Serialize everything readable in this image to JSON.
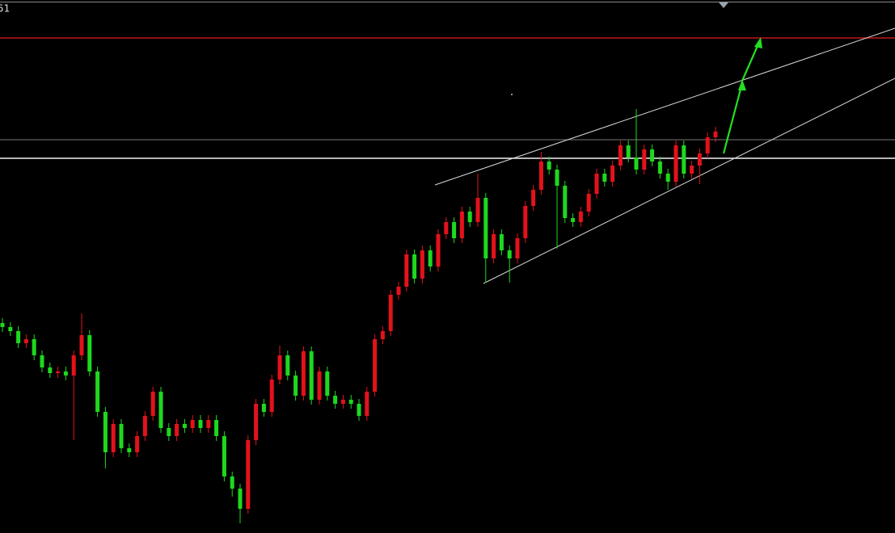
{
  "chart_data": {
    "type": "candlestick",
    "corner_label": "51",
    "ylim": [
      0,
      660
    ],
    "up_color": "#e3121b",
    "down_color": "#1ed81e",
    "open": [
      260,
      255,
      250,
      235,
      240,
      220,
      205,
      198,
      200,
      195,
      220,
      245,
      200,
      150,
      100,
      135,
      105,
      100,
      120,
      145,
      175,
      130,
      120,
      135,
      130,
      140,
      130,
      140,
      120,
      70,
      55,
      30,
      115,
      160,
      150,
      190,
      220,
      195,
      170,
      225,
      165,
      200,
      170,
      160,
      165,
      160,
      145,
      175,
      240,
      250,
      295,
      305,
      345,
      315,
      350,
      330,
      370,
      385,
      365,
      398,
      385,
      415,
      340,
      370,
      350,
      340,
      365,
      405,
      425,
      460,
      450,
      430,
      390,
      385,
      398,
      420,
      445,
      435,
      455,
      480,
      465,
      450,
      475,
      460,
      445,
      435,
      480,
      445,
      455,
      470,
      490
    ],
    "high": [
      266,
      261,
      256,
      246,
      246,
      226,
      211,
      206,
      206,
      226,
      272,
      251,
      206,
      156,
      141,
      141,
      111,
      126,
      151,
      181,
      181,
      136,
      141,
      141,
      146,
      146,
      146,
      146,
      126,
      76,
      61,
      121,
      166,
      166,
      196,
      232,
      226,
      201,
      231,
      231,
      206,
      206,
      176,
      171,
      171,
      166,
      181,
      246,
      256,
      301,
      311,
      351,
      351,
      356,
      356,
      376,
      391,
      391,
      404,
      404,
      445,
      421,
      376,
      376,
      356,
      371,
      411,
      431,
      472,
      466,
      456,
      436,
      396,
      404,
      426,
      451,
      451,
      461,
      486,
      486,
      525,
      481,
      481,
      466,
      451,
      486,
      486,
      461,
      476,
      496,
      503
    ],
    "low": [
      249,
      244,
      229,
      229,
      214,
      199,
      192,
      192,
      189,
      115,
      214,
      194,
      144,
      80,
      94,
      99,
      94,
      94,
      114,
      139,
      124,
      114,
      114,
      124,
      124,
      124,
      124,
      114,
      64,
      45,
      12,
      24,
      109,
      144,
      144,
      184,
      189,
      164,
      164,
      159,
      159,
      164,
      154,
      154,
      154,
      139,
      139,
      169,
      234,
      244,
      289,
      299,
      309,
      309,
      324,
      324,
      364,
      359,
      359,
      379,
      379,
      310,
      334,
      344,
      310,
      334,
      359,
      399,
      419,
      444,
      352,
      384,
      379,
      379,
      392,
      414,
      429,
      429,
      449,
      459,
      444,
      444,
      454,
      439,
      425,
      429,
      439,
      439,
      432,
      464,
      484
    ],
    "close": [
      255,
      250,
      235,
      240,
      220,
      205,
      198,
      200,
      195,
      220,
      245,
      200,
      150,
      100,
      135,
      105,
      100,
      120,
      145,
      175,
      130,
      120,
      135,
      130,
      140,
      130,
      140,
      120,
      70,
      55,
      30,
      115,
      160,
      150,
      190,
      220,
      195,
      170,
      225,
      165,
      200,
      170,
      160,
      165,
      160,
      145,
      175,
      240,
      250,
      295,
      305,
      345,
      315,
      350,
      330,
      370,
      385,
      365,
      398,
      385,
      415,
      340,
      370,
      350,
      340,
      365,
      405,
      425,
      460,
      450,
      430,
      390,
      385,
      398,
      420,
      445,
      435,
      455,
      480,
      465,
      450,
      475,
      460,
      445,
      435,
      480,
      445,
      455,
      470,
      490,
      497
    ]
  }
}
